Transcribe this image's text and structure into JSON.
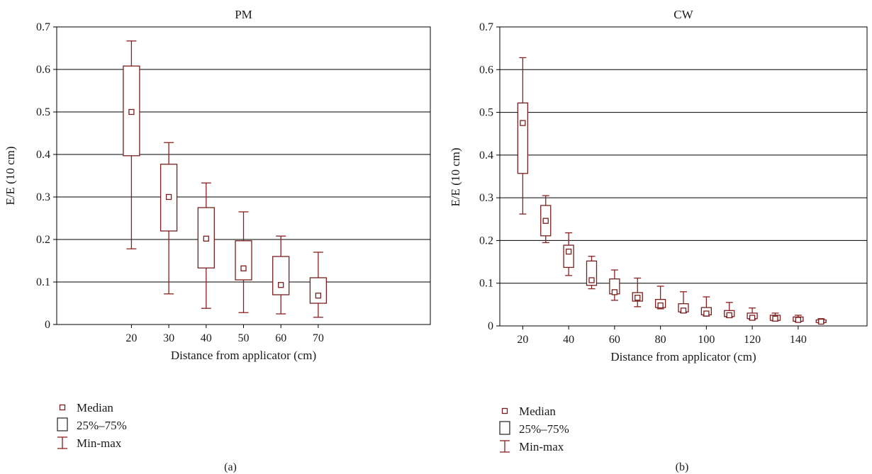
{
  "colors": {
    "box": "#7a1f1f",
    "whisker": "#8b2020",
    "median": "#7a1f1f",
    "grid": "#000000",
    "axis": "#000000",
    "text": "#1a1a1a"
  },
  "legend": {
    "median": "Median",
    "box": "25%–75%",
    "whisker": "Min-max"
  },
  "chart_data": [
    {
      "type": "box",
      "panel_label": "(a)",
      "title": "PM",
      "xlabel": "Distance from applicator (cm)",
      "ylabel": "E/E (10 cm)",
      "ylim": [
        0,
        0.7
      ],
      "yticks": [
        0,
        0.1,
        0.2,
        0.3,
        0.4,
        0.5,
        0.6,
        0.7
      ],
      "ytick_labels": [
        "0",
        "0.1",
        "0.2",
        "0.3",
        "0.4",
        "0.5",
        "0.6",
        "0.7"
      ],
      "xlim": [
        0,
        100
      ],
      "xticks": [
        20,
        30,
        40,
        50,
        60,
        70
      ],
      "xtick_labels": [
        "20",
        "30",
        "40",
        "50",
        "60",
        "70"
      ],
      "grid": true,
      "legend_position": "bottom-left",
      "series": [
        {
          "x": 20,
          "min": 0.178,
          "q1": 0.397,
          "median": 0.5,
          "q3": 0.608,
          "max": 0.667
        },
        {
          "x": 30,
          "min": 0.072,
          "q1": 0.22,
          "median": 0.3,
          "q3": 0.377,
          "max": 0.428
        },
        {
          "x": 40,
          "min": 0.038,
          "q1": 0.133,
          "median": 0.202,
          "q3": 0.275,
          "max": 0.333
        },
        {
          "x": 50,
          "min": 0.028,
          "q1": 0.105,
          "median": 0.132,
          "q3": 0.197,
          "max": 0.265
        },
        {
          "x": 60,
          "min": 0.025,
          "q1": 0.07,
          "median": 0.093,
          "q3": 0.16,
          "max": 0.208
        },
        {
          "x": 70,
          "min": 0.017,
          "q1": 0.05,
          "median": 0.068,
          "q3": 0.11,
          "max": 0.17
        }
      ]
    },
    {
      "type": "box",
      "panel_label": "(b)",
      "title": "CW",
      "xlabel": "Distance from applicator (cm)",
      "ylabel": "E/E (10 cm)",
      "ylim": [
        0,
        0.7
      ],
      "yticks": [
        0,
        0.1,
        0.2,
        0.3,
        0.4,
        0.5,
        0.6,
        0.7
      ],
      "ytick_labels": [
        "0",
        "0.1",
        "0.2",
        "0.3",
        "0.4",
        "0.5",
        "0.6",
        "0.7"
      ],
      "xlim": [
        10,
        170
      ],
      "xticks": [
        20,
        40,
        60,
        80,
        100,
        120,
        140
      ],
      "xtick_labels": [
        "20",
        "40",
        "60",
        "80",
        "100",
        "120",
        "140"
      ],
      "grid": true,
      "legend_position": "bottom-left",
      "series": [
        {
          "x": 20,
          "min": 0.262,
          "q1": 0.357,
          "median": 0.475,
          "q3": 0.522,
          "max": 0.628
        },
        {
          "x": 30,
          "min": 0.195,
          "q1": 0.211,
          "median": 0.246,
          "q3": 0.282,
          "max": 0.305
        },
        {
          "x": 40,
          "min": 0.118,
          "q1": 0.137,
          "median": 0.174,
          "q3": 0.189,
          "max": 0.218
        },
        {
          "x": 50,
          "min": 0.087,
          "q1": 0.095,
          "median": 0.107,
          "q3": 0.152,
          "max": 0.163
        },
        {
          "x": 60,
          "min": 0.06,
          "q1": 0.075,
          "median": 0.079,
          "q3": 0.11,
          "max": 0.131
        },
        {
          "x": 70,
          "min": 0.045,
          "q1": 0.058,
          "median": 0.066,
          "q3": 0.078,
          "max": 0.112
        },
        {
          "x": 80,
          "min": 0.04,
          "q1": 0.043,
          "median": 0.048,
          "q3": 0.062,
          "max": 0.093
        },
        {
          "x": 90,
          "min": 0.031,
          "q1": 0.033,
          "median": 0.036,
          "q3": 0.052,
          "max": 0.08
        },
        {
          "x": 100,
          "min": 0.023,
          "q1": 0.026,
          "median": 0.029,
          "q3": 0.043,
          "max": 0.068
        },
        {
          "x": 110,
          "min": 0.02,
          "q1": 0.022,
          "median": 0.025,
          "q3": 0.036,
          "max": 0.055
        },
        {
          "x": 120,
          "min": 0.015,
          "q1": 0.017,
          "median": 0.019,
          "q3": 0.03,
          "max": 0.042
        },
        {
          "x": 130,
          "min": 0.012,
          "q1": 0.013,
          "median": 0.017,
          "q3": 0.025,
          "max": 0.03
        },
        {
          "x": 140,
          "min": 0.01,
          "q1": 0.011,
          "median": 0.014,
          "q3": 0.021,
          "max": 0.025
        },
        {
          "x": 150,
          "min": 0.007,
          "q1": 0.008,
          "median": 0.01,
          "q3": 0.014,
          "max": 0.017
        }
      ]
    }
  ]
}
